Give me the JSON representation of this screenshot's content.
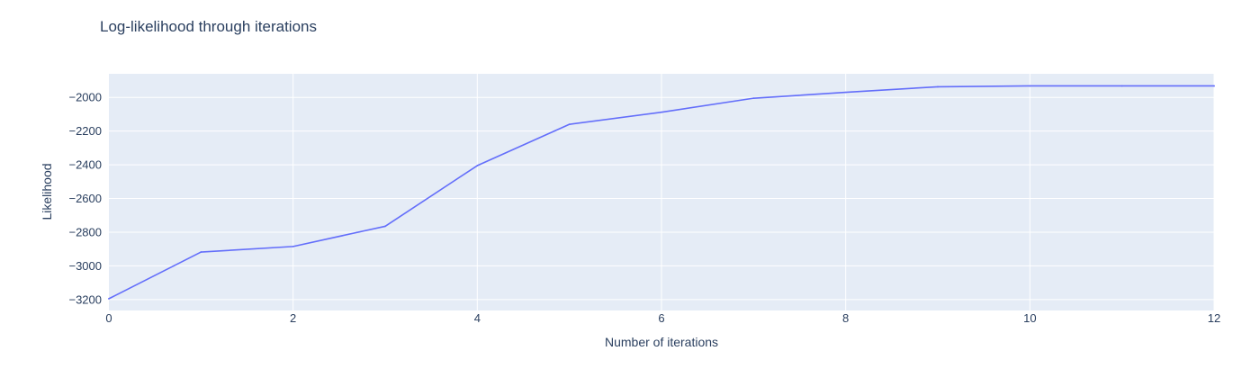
{
  "chart_data": {
    "type": "line",
    "title": "Log-likelihood through iterations",
    "xlabel": "Number of iterations",
    "ylabel": "Likelihood",
    "xlim": [
      0,
      12
    ],
    "ylim": [
      -3265,
      -1860
    ],
    "x_ticks": [
      0,
      2,
      4,
      6,
      8,
      10,
      12
    ],
    "y_ticks": [
      -3200,
      -3000,
      -2800,
      -2600,
      -2400,
      -2200,
      -2000
    ],
    "grid": true,
    "legend": "none",
    "x": [
      0,
      1,
      2,
      3,
      4,
      5,
      6,
      7,
      8,
      9,
      10,
      11,
      12
    ],
    "series": [
      {
        "values": [
          -3195,
          -2918,
          -2885,
          -2765,
          -2405,
          -2160,
          -2088,
          -2005,
          -1970,
          -1937,
          -1932,
          -1932,
          -1932
        ]
      }
    ]
  },
  "colors": {
    "plot_background": "#E5ECF6",
    "grid": "#FFFFFF",
    "line": "#636EFA",
    "text": "#2A3F5F"
  }
}
